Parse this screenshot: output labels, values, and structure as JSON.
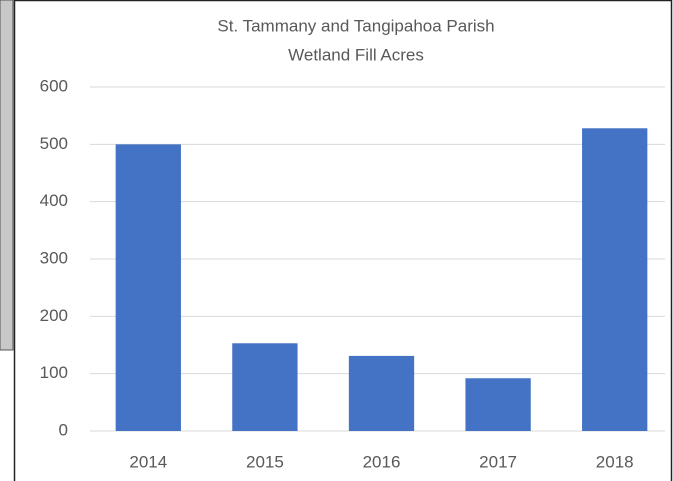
{
  "chart_data": {
    "type": "bar",
    "title_lines": [
      "St. Tammany and Tangipahoa Parish",
      "Wetland Fill Acres"
    ],
    "categories": [
      "2014",
      "2015",
      "2016",
      "2017",
      "2018"
    ],
    "values": [
      500,
      153,
      131,
      92,
      528
    ],
    "color": "#4472c4",
    "ylim": [
      0,
      600
    ],
    "yticks": [
      0,
      100,
      200,
      300,
      400,
      500,
      600
    ],
    "grid": true
  }
}
